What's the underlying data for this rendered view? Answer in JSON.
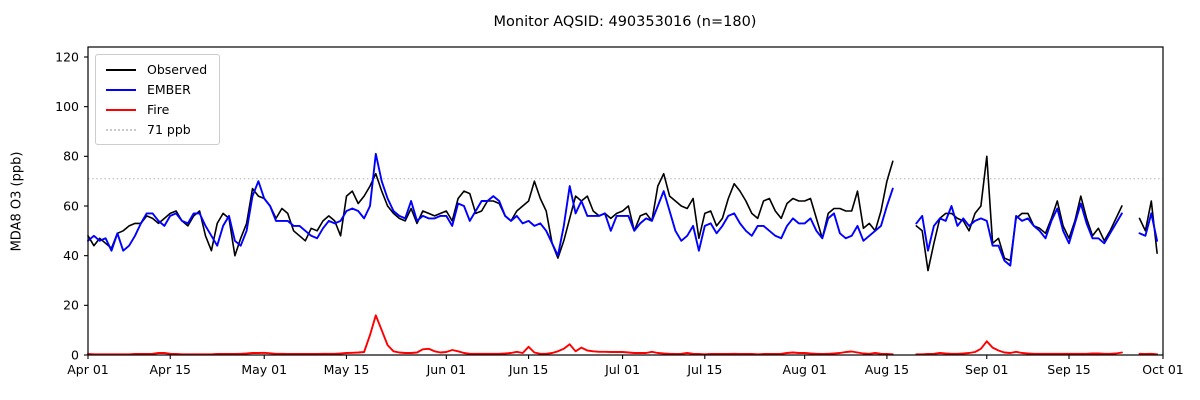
{
  "figure": {
    "title": "Monitor AQSID: 490353016 (n=180)"
  },
  "axes": {
    "ylabel": "MDA8 O3 (ppb)",
    "yticks": [
      0,
      20,
      40,
      60,
      80,
      100,
      120
    ],
    "xtick_labels": [
      "Apr 01",
      "Apr 15",
      "May 01",
      "May 15",
      "Jun 01",
      "Jun 15",
      "Jul 01",
      "Jul 15",
      "Aug 01",
      "Aug 15",
      "Sep 01",
      "Sep 15",
      "Oct 01"
    ],
    "xtick_days": [
      0,
      14,
      30,
      44,
      61,
      75,
      91,
      105,
      122,
      136,
      153,
      167,
      183
    ]
  },
  "legend": {
    "items": [
      {
        "label": "Observed",
        "color": "#000000",
        "style": "solid"
      },
      {
        "label": "EMBER",
        "color": "#0000ff",
        "style": "solid"
      },
      {
        "label": "Fire",
        "color": "#ff0000",
        "style": "solid"
      },
      {
        "label": "71 ppb",
        "color": "#c9c9c9",
        "style": "dotted"
      }
    ]
  },
  "chart_data": {
    "type": "line",
    "title": "Monitor AQSID: 490353016 (n=180)",
    "xlabel": "",
    "ylabel": "MDA8 O3 (ppb)",
    "x_unit": "days since Apr 01",
    "x_range_days": [
      0,
      183
    ],
    "ylim": [
      0,
      124
    ],
    "grid": false,
    "legend_position": "upper left",
    "threshold": {
      "value": 71,
      "label": "71 ppb",
      "color": "#c9c9c9",
      "linestyle": "dotted"
    },
    "xtick_labels": [
      "Apr 01",
      "Apr 15",
      "May 01",
      "May 15",
      "Jun 01",
      "Jun 15",
      "Jul 01",
      "Jul 15",
      "Aug 01",
      "Aug 15",
      "Sep 01",
      "Sep 15",
      "Oct 01"
    ],
    "xtick_days": [
      0,
      14,
      30,
      44,
      61,
      75,
      91,
      105,
      122,
      136,
      153,
      167,
      183
    ],
    "series": [
      {
        "name": "Observed",
        "color": "#000000",
        "values": [
          48,
          44,
          47,
          45,
          43,
          49,
          50,
          52,
          53,
          53,
          56,
          55,
          53,
          55,
          57,
          58,
          54,
          52,
          56,
          58,
          48,
          42,
          53,
          57,
          55,
          40,
          47,
          53,
          67,
          64,
          63,
          60,
          55,
          59,
          57,
          50,
          48,
          46,
          51,
          50,
          54,
          56,
          54,
          48,
          64,
          66,
          61,
          64,
          68,
          73,
          66,
          60,
          57,
          55,
          54,
          59,
          53,
          58,
          57,
          56,
          57,
          58,
          54,
          63,
          66,
          65,
          57,
          58,
          62,
          62,
          61,
          56,
          54,
          58,
          60,
          62,
          70,
          63,
          58,
          45,
          39,
          46,
          55,
          64,
          62,
          64,
          58,
          56,
          57,
          55,
          57,
          58,
          60,
          50,
          56,
          57,
          54,
          68,
          73,
          64,
          62,
          60,
          59,
          63,
          47,
          57,
          58,
          52,
          55,
          63,
          69,
          66,
          62,
          57,
          55,
          62,
          63,
          58,
          55,
          61,
          63,
          62,
          62,
          63,
          55,
          47,
          57,
          59,
          59,
          58,
          58,
          66,
          51,
          53,
          50,
          58,
          70,
          78,
          null,
          null,
          null,
          52,
          50,
          34,
          45,
          55,
          57,
          57,
          55,
          54,
          50,
          57,
          60,
          80,
          45,
          47,
          39,
          38,
          55,
          57,
          57,
          52,
          51,
          49,
          55,
          62,
          52,
          47,
          54,
          64,
          55,
          48,
          51,
          46,
          50,
          55,
          60,
          null,
          null,
          55,
          50,
          62,
          41
        ]
      },
      {
        "name": "EMBER",
        "color": "#0000ff",
        "values": [
          46,
          48,
          46,
          47,
          42,
          49,
          42,
          44,
          48,
          53,
          57,
          57,
          54,
          52,
          56,
          57,
          54,
          53,
          57,
          57,
          52,
          48,
          44,
          52,
          56,
          46,
          44,
          50,
          64,
          70,
          63,
          60,
          54,
          54,
          54,
          52,
          52,
          50,
          48,
          47,
          51,
          54,
          53,
          54,
          58,
          59,
          58,
          55,
          60,
          81,
          70,
          63,
          58,
          56,
          55,
          62,
          54,
          56,
          55,
          55,
          56,
          56,
          52,
          61,
          60,
          54,
          58,
          62,
          62,
          64,
          62,
          56,
          54,
          56,
          53,
          54,
          52,
          53,
          50,
          45,
          40,
          52,
          68,
          57,
          62,
          56,
          56,
          56,
          57,
          50,
          56,
          56,
          56,
          50,
          53,
          55,
          54,
          60,
          66,
          58,
          50,
          46,
          48,
          52,
          42,
          52,
          53,
          49,
          52,
          56,
          57,
          53,
          50,
          48,
          52,
          52,
          50,
          48,
          47,
          52,
          55,
          53,
          53,
          55,
          50,
          47,
          55,
          57,
          49,
          47,
          48,
          52,
          46,
          48,
          50,
          52,
          60,
          67,
          null,
          null,
          null,
          53,
          56,
          42,
          52,
          55,
          54,
          60,
          52,
          55,
          52,
          54,
          55,
          54,
          44,
          44,
          38,
          36,
          56,
          54,
          55,
          52,
          50,
          47,
          54,
          59,
          50,
          45,
          53,
          61,
          53,
          47,
          47,
          45,
          49,
          53,
          57,
          null,
          null,
          49,
          48,
          57,
          46
        ]
      },
      {
        "name": "Fire",
        "color": "#ff0000",
        "values": [
          0.4,
          0.3,
          0.3,
          0.3,
          0.3,
          0.3,
          0.3,
          0.3,
          0.4,
          0.4,
          0.4,
          0.5,
          0.8,
          0.8,
          0.5,
          0.4,
          0.3,
          0.3,
          0.3,
          0.3,
          0.3,
          0.3,
          0.4,
          0.4,
          0.4,
          0.4,
          0.5,
          0.6,
          0.8,
          0.8,
          0.9,
          0.7,
          0.5,
          0.5,
          0.4,
          0.4,
          0.4,
          0.4,
          0.4,
          0.4,
          0.5,
          0.5,
          0.5,
          0.6,
          0.8,
          0.9,
          1.0,
          1.2,
          8.0,
          16.0,
          10.0,
          4.0,
          1.5,
          1.0,
          0.8,
          0.8,
          1.0,
          2.3,
          2.5,
          1.5,
          1.0,
          1.2,
          2.0,
          1.5,
          0.8,
          0.5,
          0.5,
          0.5,
          0.5,
          0.5,
          0.5,
          0.6,
          0.8,
          1.3,
          0.8,
          3.3,
          1.0,
          0.5,
          0.5,
          0.8,
          1.5,
          2.5,
          4.3,
          1.5,
          3.0,
          1.8,
          1.5,
          1.3,
          1.3,
          1.2,
          1.2,
          1.2,
          1.0,
          0.8,
          0.8,
          0.8,
          1.3,
          0.8,
          0.6,
          0.5,
          0.4,
          0.5,
          0.8,
          0.5,
          0.4,
          0.3,
          0.4,
          0.4,
          0.4,
          0.4,
          0.5,
          0.4,
          0.4,
          0.4,
          0.3,
          0.4,
          0.4,
          0.4,
          0.5,
          0.8,
          1.0,
          0.8,
          0.8,
          0.6,
          0.5,
          0.4,
          0.5,
          0.6,
          0.8,
          1.2,
          1.4,
          1.0,
          0.6,
          0.5,
          0.8,
          0.5,
          0.4,
          0.3,
          null,
          null,
          null,
          0.3,
          0.3,
          0.4,
          0.5,
          0.8,
          0.6,
          0.5,
          0.5,
          0.6,
          0.8,
          1.2,
          2.5,
          5.5,
          3.0,
          1.8,
          1.0,
          0.8,
          1.3,
          0.8,
          0.6,
          0.5,
          0.5,
          0.5,
          0.5,
          0.5,
          0.5,
          0.5,
          0.5,
          0.5,
          0.5,
          0.6,
          0.6,
          0.5,
          0.5,
          0.6,
          1.0,
          null,
          null,
          0.5,
          0.4,
          0.5,
          0.3
        ]
      }
    ]
  }
}
